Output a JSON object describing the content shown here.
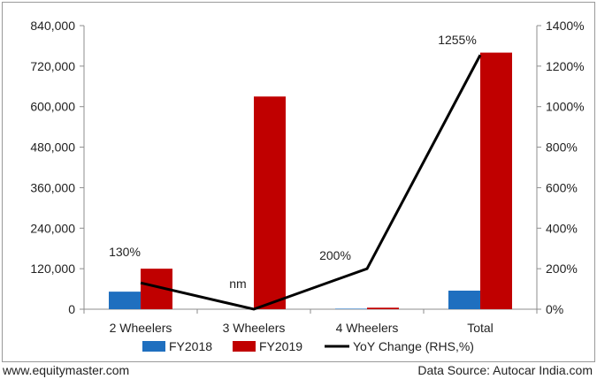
{
  "chart_data": {
    "type": "bar",
    "categories": [
      "2 Wheelers",
      "3 Wheelers",
      "4 Wheelers",
      "Total"
    ],
    "series": [
      {
        "name": "FY2018",
        "type": "bar",
        "axis": "left",
        "color": "#1f6fbf",
        "values": [
          52000,
          0,
          1500,
          55000
        ]
      },
      {
        "name": "FY2019",
        "type": "bar",
        "axis": "left",
        "color": "#c00000",
        "values": [
          120000,
          630000,
          4500,
          760000
        ]
      },
      {
        "name": "YoY Change (RHS,%)",
        "type": "line",
        "axis": "right",
        "color": "#000000",
        "values": [
          130,
          0,
          200,
          1255
        ]
      }
    ],
    "data_labels": [
      "130%",
      "nm",
      "200%",
      "1255%"
    ],
    "ylim": [
      0,
      840000
    ],
    "y_ticks": [
      "0",
      "120,000",
      "240,000",
      "360,000",
      "480,000",
      "600,000",
      "720,000",
      "840,000"
    ],
    "y2lim": [
      0,
      1400
    ],
    "y2_ticks": [
      "0%",
      "200%",
      "400%",
      "600%",
      "800%",
      "1000%",
      "1200%",
      "1400%"
    ],
    "grid": false,
    "legend_position": "bottom"
  },
  "footer": {
    "left": "www.equitymaster.com",
    "right": "Data Source: Autocar India.com"
  }
}
